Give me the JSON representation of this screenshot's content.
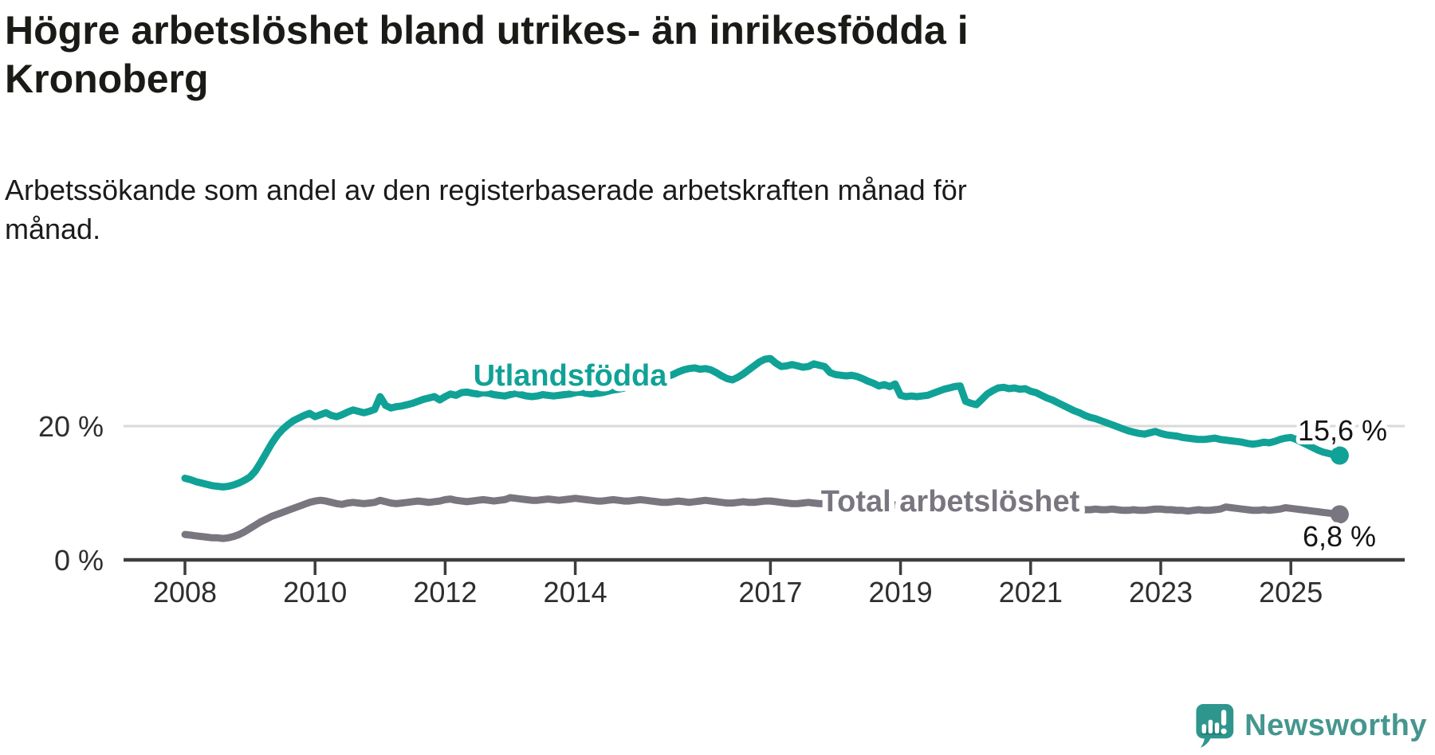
{
  "title": {
    "line1": "Högre arbetslöshet bland utrikes- än inrikesfödda i",
    "line2": "Kronoberg"
  },
  "subtitle": {
    "line1": "Arbetssökande som andel av den registerbaserade arbetskraften månad för",
    "line2": "månad."
  },
  "branding": {
    "name": "Newsworthy",
    "icon": "newsworthy-speech-bubble-chart-icon",
    "icon_color": "#2F968E",
    "text_color": "#45968F"
  },
  "colors": {
    "teal_series": "#10A296",
    "gray_series": "#7A7680",
    "grid": "#D9D9D9",
    "axis": "#3D3D3D",
    "text_dark": "#1a1a17"
  },
  "chart_data": {
    "type": "line",
    "frequency": "monthly",
    "x_start": "2008-01",
    "x_end": "2025-10",
    "ylim": [
      0,
      32
    ],
    "grid": "single horizontal gridline at 20%",
    "legend_position": "inline-labels-on-lines",
    "x_tick_labels": [
      "2008",
      "2010",
      "2012",
      "2014",
      "2017",
      "2019",
      "2021",
      "2023",
      "2025"
    ],
    "y_ticks": [
      {
        "label": "0 %",
        "value": 0
      },
      {
        "label": "20 %",
        "value": 20
      }
    ],
    "series": [
      {
        "name": "Utlandsfödda",
        "color": "#10A296",
        "end_label": "15,6 %",
        "end_value": 15.6,
        "values": [
          12.2,
          12.0,
          11.7,
          11.5,
          11.3,
          11.1,
          11.0,
          10.9,
          11.0,
          11.2,
          11.5,
          11.9,
          12.4,
          13.3,
          14.6,
          16.0,
          17.4,
          18.6,
          19.5,
          20.2,
          20.8,
          21.2,
          21.6,
          21.9,
          21.4,
          21.7,
          22.0,
          21.6,
          21.4,
          21.7,
          22.1,
          22.4,
          22.2,
          22.0,
          22.2,
          22.5,
          24.4,
          23.1,
          22.7,
          22.9,
          23.0,
          23.2,
          23.4,
          23.7,
          24.0,
          24.2,
          24.4,
          23.9,
          24.4,
          24.8,
          24.6,
          25.0,
          25.1,
          24.9,
          24.8,
          25.0,
          24.9,
          24.7,
          24.6,
          24.5,
          24.7,
          24.9,
          24.7,
          24.5,
          24.4,
          24.5,
          24.7,
          24.6,
          24.5,
          24.6,
          24.7,
          24.8,
          25.0,
          25.1,
          24.9,
          24.8,
          24.9,
          25.0,
          25.2,
          25.4,
          25.5,
          25.7,
          25.9,
          26.1,
          26.4,
          26.6,
          26.8,
          27.0,
          27.2,
          27.4,
          27.7,
          28.1,
          28.4,
          28.6,
          28.7,
          28.5,
          28.6,
          28.4,
          28.0,
          27.5,
          27.1,
          26.9,
          27.3,
          27.8,
          28.4,
          29.0,
          29.6,
          30.0,
          30.1,
          29.4,
          28.9,
          29.0,
          29.2,
          29.0,
          28.8,
          28.9,
          29.3,
          29.1,
          28.9,
          28.0,
          27.7,
          27.6,
          27.5,
          27.6,
          27.4,
          27.1,
          26.7,
          26.4,
          26.0,
          26.2,
          25.9,
          26.3,
          24.6,
          24.4,
          24.5,
          24.4,
          24.5,
          24.6,
          24.9,
          25.2,
          25.5,
          25.7,
          25.9,
          26.0,
          23.7,
          23.4,
          23.2,
          24.0,
          24.8,
          25.3,
          25.7,
          25.8,
          25.6,
          25.7,
          25.5,
          25.6,
          25.2,
          25.0,
          24.6,
          24.2,
          23.9,
          23.5,
          23.1,
          22.7,
          22.3,
          22.0,
          21.6,
          21.3,
          21.1,
          20.8,
          20.5,
          20.2,
          19.9,
          19.6,
          19.3,
          19.1,
          18.9,
          18.8,
          19.0,
          19.2,
          18.9,
          18.7,
          18.6,
          18.5,
          18.3,
          18.2,
          18.1,
          18.0,
          18.0,
          18.1,
          18.2,
          18.0,
          17.9,
          17.8,
          17.7,
          17.6,
          17.4,
          17.3,
          17.4,
          17.6,
          17.5,
          17.7,
          18.0,
          18.2,
          18.3,
          18.0,
          17.6,
          17.2,
          16.8,
          16.4,
          16.1,
          15.9,
          15.7,
          15.6
        ]
      },
      {
        "name": "Total arbetslöshet",
        "color": "#7A7680",
        "end_label": "6,8 %",
        "end_value": 6.8,
        "values": [
          3.8,
          3.7,
          3.6,
          3.5,
          3.4,
          3.3,
          3.3,
          3.2,
          3.3,
          3.5,
          3.8,
          4.2,
          4.7,
          5.2,
          5.7,
          6.1,
          6.5,
          6.8,
          7.1,
          7.4,
          7.7,
          8.0,
          8.3,
          8.6,
          8.8,
          8.9,
          8.8,
          8.6,
          8.4,
          8.3,
          8.5,
          8.6,
          8.5,
          8.4,
          8.5,
          8.6,
          8.9,
          8.7,
          8.5,
          8.4,
          8.5,
          8.6,
          8.7,
          8.8,
          8.7,
          8.6,
          8.7,
          8.8,
          9.0,
          9.1,
          8.9,
          8.8,
          8.7,
          8.8,
          8.9,
          9.0,
          8.9,
          8.8,
          8.9,
          9.0,
          9.3,
          9.2,
          9.1,
          9.0,
          8.9,
          8.9,
          9.0,
          9.1,
          9.0,
          8.9,
          9.0,
          9.1,
          9.2,
          9.1,
          9.0,
          8.9,
          8.8,
          8.8,
          8.9,
          9.0,
          8.9,
          8.8,
          8.8,
          8.9,
          9.0,
          8.9,
          8.8,
          8.7,
          8.6,
          8.6,
          8.7,
          8.8,
          8.7,
          8.6,
          8.7,
          8.8,
          8.9,
          8.8,
          8.7,
          8.6,
          8.5,
          8.5,
          8.6,
          8.7,
          8.6,
          8.6,
          8.7,
          8.8,
          8.8,
          8.7,
          8.6,
          8.5,
          8.4,
          8.4,
          8.5,
          8.6,
          8.5,
          8.4,
          8.4,
          8.5,
          8.4,
          8.3,
          8.3,
          8.2,
          8.1,
          8.1,
          8.2,
          8.2,
          8.1,
          8.0,
          8.1,
          8.2,
          8.1,
          8.0,
          8.0,
          7.9,
          7.9,
          8.0,
          8.1,
          8.2,
          8.2,
          8.3,
          8.3,
          8.4,
          8.3,
          8.2,
          8.4,
          8.9,
          9.3,
          9.5,
          9.6,
          9.5,
          9.4,
          9.3,
          9.2,
          9.1,
          9.0,
          8.9,
          8.7,
          8.5,
          8.3,
          8.1,
          7.9,
          7.8,
          7.7,
          7.6,
          7.5,
          7.5,
          7.6,
          7.5,
          7.5,
          7.6,
          7.5,
          7.4,
          7.4,
          7.5,
          7.4,
          7.4,
          7.5,
          7.6,
          7.6,
          7.5,
          7.5,
          7.4,
          7.4,
          7.3,
          7.4,
          7.5,
          7.4,
          7.4,
          7.5,
          7.6,
          7.9,
          7.8,
          7.7,
          7.6,
          7.5,
          7.4,
          7.4,
          7.5,
          7.4,
          7.5,
          7.6,
          7.8,
          7.7,
          7.6,
          7.5,
          7.4,
          7.3,
          7.2,
          7.1,
          7.0,
          6.9,
          6.8
        ]
      }
    ]
  }
}
